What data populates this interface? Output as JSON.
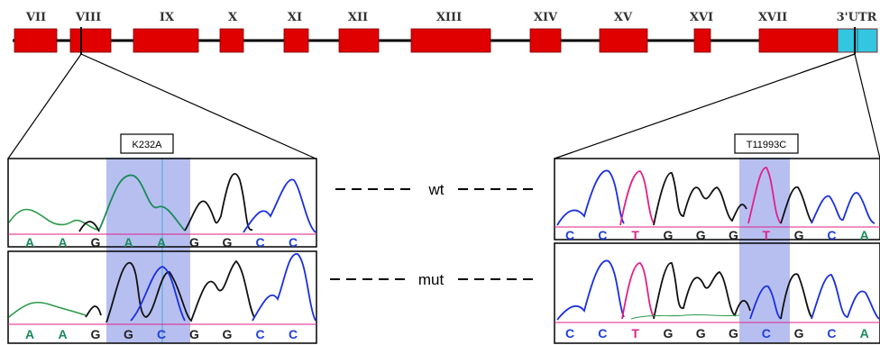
{
  "exons": [
    {
      "label": "VII"
    },
    {
      "label": "VIII"
    },
    {
      "label": "IX"
    },
    {
      "label": "X"
    },
    {
      "label": "XI"
    },
    {
      "label": "XII"
    },
    {
      "label": "XIII"
    },
    {
      "label": "XIV"
    },
    {
      "label": "XV"
    },
    {
      "label": "XVI"
    },
    {
      "label": "XVII"
    },
    {
      "label": "3'UTR"
    }
  ],
  "colors": {
    "exon": "#e00000",
    "utr": "#33c6e0",
    "highlight": "#b7bff0",
    "base_A": "#1a8a5a",
    "base_G": "#222222",
    "base_C": "#1f3fd8",
    "base_T": "#e0208a",
    "trace_green": "#2a9a4a",
    "trace_black": "#111111",
    "trace_blue": "#1a2fe0",
    "trace_pink": "#e0208a"
  },
  "left_panel": {
    "mutation": "K232A",
    "wt_bases": [
      "A",
      "A",
      "G",
      "A",
      "A",
      "G",
      "G",
      "C",
      "C"
    ],
    "mut_bases": [
      "A",
      "A",
      "G",
      "G",
      "C",
      "G",
      "G",
      "C",
      "C"
    ]
  },
  "right_panel": {
    "mutation": "T11993C",
    "wt_bases": [
      "C",
      "C",
      "T",
      "G",
      "G",
      "G",
      "T",
      "G",
      "C",
      "A"
    ],
    "mut_bases": [
      "C",
      "C",
      "T",
      "G",
      "G",
      "G",
      "C",
      "G",
      "C",
      "A"
    ]
  },
  "rows": {
    "wt": "wt",
    "mut": "mut"
  }
}
